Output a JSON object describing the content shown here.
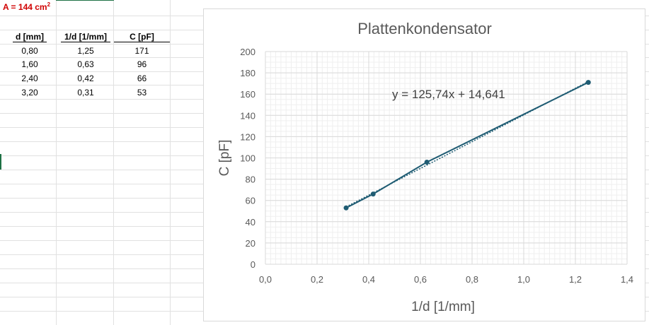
{
  "sheet": {
    "area_label": "A = 144 cm",
    "area_exp": "2",
    "headers": [
      "d [mm]",
      "1/d [1/mm]",
      "C [pF]"
    ],
    "rows": [
      [
        "0,80",
        "1,25",
        "171"
      ],
      [
        "1,60",
        "0,63",
        "96"
      ],
      [
        "2,40",
        "0,42",
        "66"
      ],
      [
        "3,20",
        "0,31",
        "53"
      ]
    ]
  },
  "chart_data": {
    "type": "scatter",
    "title": "Plattenkondensator",
    "xlabel": "1/d [1/mm]",
    "ylabel": "C [pF]",
    "xlim": [
      0,
      1.4
    ],
    "ylim": [
      0,
      200
    ],
    "xticks": [
      "0,0",
      "0,2",
      "0,4",
      "0,6",
      "0,8",
      "1,0",
      "1,2",
      "1,4"
    ],
    "yticks": [
      "0",
      "20",
      "40",
      "60",
      "80",
      "100",
      "120",
      "140",
      "160",
      "180",
      "200"
    ],
    "grid": true,
    "series": [
      {
        "x": [
          1.25,
          0.625,
          0.417,
          0.3125
        ],
        "y": [
          171,
          96,
          66,
          53
        ],
        "color": "#1f5c73"
      }
    ],
    "trendline": {
      "slope": 125.74,
      "intercept": 14.641,
      "label": "y = 125,74x + 14,641"
    }
  }
}
